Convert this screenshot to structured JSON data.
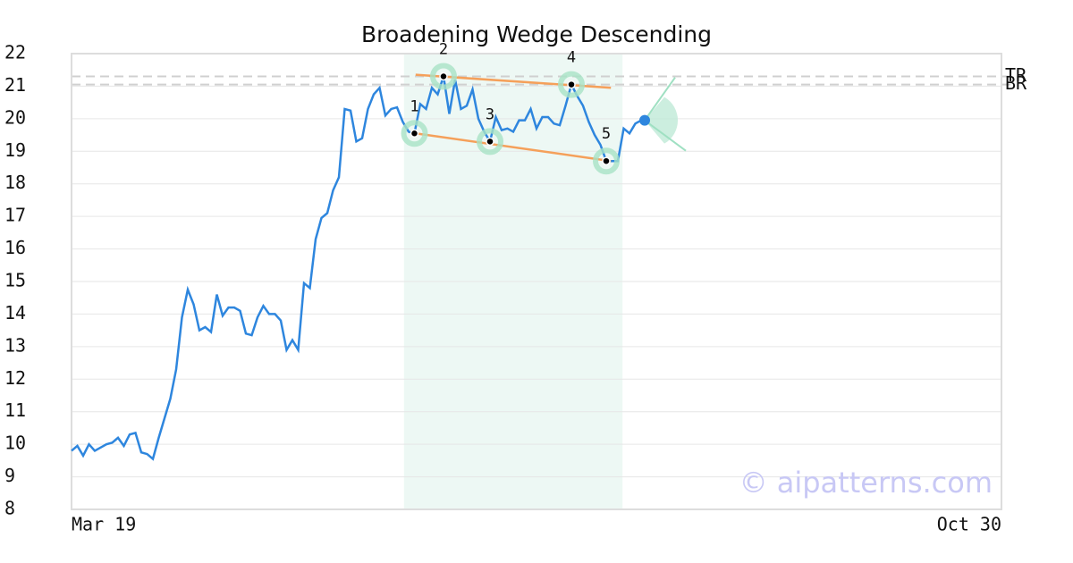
{
  "chart_data": {
    "type": "line",
    "title": "Broadening Wedge Descending",
    "color": "#2e86de",
    "x": [
      0,
      1,
      2,
      3,
      4,
      5,
      6,
      7,
      8,
      9,
      10,
      11,
      12,
      13,
      14,
      15,
      16,
      17,
      18,
      19,
      20,
      21,
      22,
      23,
      24,
      25,
      26,
      27,
      28,
      29,
      30,
      31,
      32,
      33,
      34,
      35,
      36,
      37,
      38,
      39,
      40,
      41,
      42,
      43,
      44,
      45,
      46,
      47,
      48,
      49,
      50,
      51,
      52,
      53,
      54,
      55,
      56,
      57,
      58,
      59,
      60,
      61,
      62,
      63,
      64,
      65,
      66,
      67,
      68,
      69,
      70,
      71,
      72,
      73,
      74,
      75,
      76,
      77,
      78,
      79,
      80,
      81,
      82,
      83,
      84,
      85,
      86,
      87,
      88,
      89,
      90,
      91,
      92,
      93,
      94,
      95,
      96,
      97,
      98
    ],
    "values": [
      9.8,
      9.95,
      9.65,
      10.0,
      9.8,
      9.9,
      10.0,
      10.05,
      10.2,
      9.95,
      10.3,
      10.35,
      9.75,
      9.7,
      9.55,
      10.2,
      10.8,
      11.4,
      12.3,
      13.9,
      14.75,
      14.3,
      13.5,
      13.6,
      13.45,
      14.6,
      13.95,
      14.2,
      14.2,
      14.1,
      13.4,
      13.35,
      13.9,
      14.25,
      14.0,
      14.0,
      13.8,
      12.9,
      13.2,
      12.9,
      14.95,
      14.8,
      16.3,
      16.95,
      17.1,
      17.8,
      18.2,
      20.3,
      20.25,
      19.3,
      19.4,
      20.3,
      20.75,
      20.95,
      20.1,
      20.3,
      20.35,
      19.9,
      19.6,
      19.55,
      20.45,
      20.3,
      20.95,
      20.75,
      21.3,
      20.15,
      21.2,
      20.3,
      20.4,
      20.9,
      20.0,
      19.6,
      19.3,
      20.05,
      19.65,
      19.7,
      19.6,
      19.95,
      19.95,
      20.3,
      19.7,
      20.05,
      20.05,
      19.85,
      19.8,
      20.4,
      21.05,
      20.7,
      20.4,
      19.9,
      19.5,
      19.2,
      18.7,
      18.7,
      18.7,
      19.7,
      19.55,
      19.85,
      19.95
    ],
    "xlim": [
      0,
      160
    ],
    "xticks": [
      {
        "value": 0,
        "label": "Mar 19"
      },
      {
        "value": 160,
        "label": "Oct 30"
      }
    ],
    "ylim": [
      8,
      22
    ],
    "yticks": [
      8,
      9,
      10,
      11,
      12,
      13,
      14,
      15,
      16,
      17,
      18,
      19,
      20,
      21,
      22
    ],
    "grid": true,
    "highlight_x": [
      57.2,
      94.8
    ],
    "pattern_points": {
      "labels": [
        "1",
        "2",
        "3",
        "4",
        "5"
      ],
      "x": [
        59,
        64,
        72,
        86,
        92
      ],
      "values": [
        19.55,
        21.3,
        19.3,
        21.05,
        18.7
      ]
    },
    "trendlines": [
      {
        "color": "#f5a05a",
        "x": [
          59.2,
          92.8
        ],
        "values": [
          21.35,
          20.95
        ]
      },
      {
        "color": "#f5a05a",
        "x": [
          59.2,
          92.8
        ],
        "values": [
          19.55,
          18.7
        ]
      }
    ],
    "reference_lines": [
      {
        "label": "TR",
        "value": 21.3
      },
      {
        "label": "BR",
        "value": 21.05
      }
    ],
    "watermark": "© aipatterns.com"
  }
}
